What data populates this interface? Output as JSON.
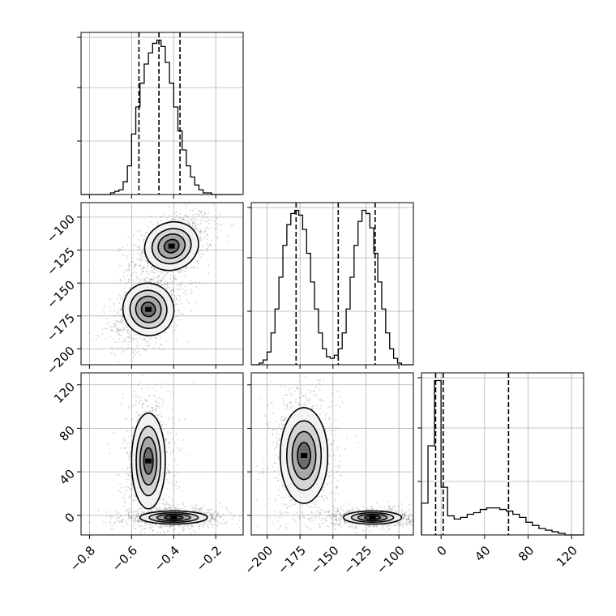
{
  "chart_data": {
    "type": "corner",
    "grid": true,
    "diagonal_tick_labels_shown": false,
    "colors": {
      "line": "#000000",
      "grid": "#b0b0b0",
      "points": "#000000"
    },
    "parameters": [
      {
        "ticks": [
          -0.8,
          -0.6,
          -0.4,
          -0.2
        ],
        "tick_labels": [
          "−0.8",
          "−0.6",
          "−0.4",
          "−0.2"
        ],
        "range": [
          -0.84,
          -0.07
        ]
      },
      {
        "ticks": [
          -200,
          -175,
          -150,
          -125,
          -100
        ],
        "tick_labels": [
          "−200",
          "−175",
          "−150",
          "−125",
          "−100"
        ],
        "range": [
          -212,
          -89
        ]
      },
      {
        "ticks": [
          0,
          40,
          80,
          120
        ],
        "tick_labels": [
          "0",
          "40",
          "80",
          "120"
        ],
        "range": [
          -18,
          131
        ]
      }
    ],
    "quantiles": [
      [
        -0.565,
        -0.47,
        -0.37
      ],
      [
        -178,
        -146,
        -118
      ],
      [
        -5,
        2,
        62
      ]
    ],
    "histograms": [
      {
        "bin_edges": [
          -0.84,
          -0.82,
          -0.8,
          -0.78,
          -0.76,
          -0.74,
          -0.72,
          -0.7,
          -0.68,
          -0.66,
          -0.64,
          -0.62,
          -0.6,
          -0.58,
          -0.56,
          -0.54,
          -0.52,
          -0.5,
          -0.48,
          -0.46,
          -0.44,
          -0.42,
          -0.4,
          -0.38,
          -0.36,
          -0.34,
          -0.32,
          -0.3,
          -0.28,
          -0.26,
          -0.24,
          -0.22,
          -0.2,
          -0.18,
          -0.16,
          -0.14,
          -0.12,
          -0.1,
          -0.08
        ],
        "counts": [
          0,
          0,
          0,
          0,
          0,
          0,
          0,
          1,
          2,
          3,
          8,
          18,
          38,
          55,
          70,
          82,
          89,
          95,
          97,
          93,
          83,
          70,
          55,
          40,
          28,
          18,
          11,
          6,
          3,
          1,
          1,
          0,
          0,
          0,
          0,
          0,
          0,
          0
        ]
      },
      {
        "bin_edges": [
          -212,
          -209,
          -206,
          -203,
          -200,
          -197,
          -194,
          -191,
          -188,
          -185,
          -182,
          -179,
          -176,
          -173,
          -170,
          -167,
          -164,
          -161,
          -158,
          -155,
          -152,
          -149,
          -146,
          -143,
          -140,
          -137,
          -134,
          -131,
          -128,
          -125,
          -122,
          -119,
          -116,
          -113,
          -110,
          -107,
          -104,
          -101,
          -98,
          -95,
          -92,
          -89
        ],
        "counts": [
          0,
          0,
          1,
          3,
          8,
          20,
          35,
          55,
          75,
          88,
          95,
          97,
          94,
          85,
          70,
          52,
          35,
          20,
          10,
          5,
          4,
          6,
          10,
          20,
          35,
          55,
          75,
          90,
          97,
          95,
          86,
          70,
          52,
          35,
          20,
          10,
          4,
          1,
          0,
          0,
          0
        ]
      },
      {
        "bin_edges": [
          -18,
          -12,
          -6,
          0,
          6,
          12,
          18,
          24,
          30,
          36,
          42,
          48,
          54,
          60,
          66,
          72,
          78,
          84,
          90,
          96,
          102,
          108,
          114,
          120,
          126,
          131
        ],
        "counts": [
          20,
          56,
          97,
          30,
          12,
          10,
          11,
          13,
          14,
          16,
          17,
          17,
          16,
          15,
          13,
          11,
          8,
          6,
          4,
          3,
          2,
          1,
          0,
          0,
          0
        ]
      }
    ],
    "panels_2d": [
      {
        "row": 1,
        "col": 0,
        "clusters": [
          {
            "x_mean": -0.41,
            "y_mean": -122,
            "x_sd": 0.065,
            "y_sd": 9,
            "rho": 0.45,
            "weight": 0.5
          },
          {
            "x_mean": -0.52,
            "y_mean": -170,
            "x_sd": 0.06,
            "y_sd": 10,
            "rho": 0.45,
            "weight": 0.5
          }
        ]
      },
      {
        "row": 2,
        "col": 0,
        "clusters": [
          {
            "x_mean": -0.52,
            "y_mean": 50,
            "x_sd": 0.04,
            "y_sd": 22,
            "rho": 0.0,
            "weight": 0.5
          },
          {
            "x_mean": -0.4,
            "y_mean": -2,
            "x_sd": 0.08,
            "y_sd": 3,
            "rho": 0.0,
            "weight": 0.5
          }
        ]
      },
      {
        "row": 2,
        "col": 1,
        "clusters": [
          {
            "x_mean": -172,
            "y_mean": 55,
            "x_sd": 9,
            "y_sd": 22,
            "rho": 0.0,
            "weight": 0.5
          },
          {
            "x_mean": -120,
            "y_mean": -2,
            "x_sd": 11,
            "y_sd": 3,
            "rho": 0.0,
            "weight": 0.5
          }
        ]
      }
    ],
    "contour_levels": [
      0.12,
      0.3,
      0.55,
      0.8
    ]
  }
}
